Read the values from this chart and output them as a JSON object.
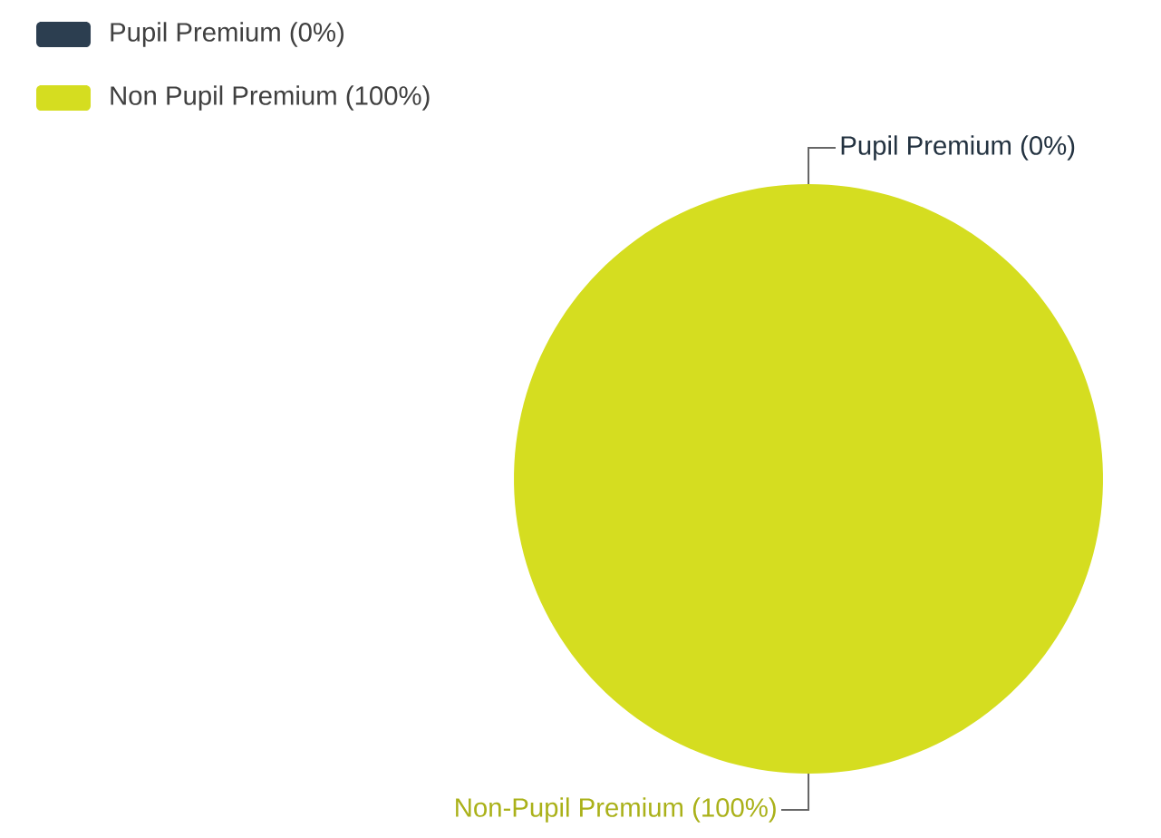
{
  "chart_data": {
    "type": "pie",
    "categories": [
      "Pupil Premium (0%)",
      "Non Pupil Premium (100%)"
    ],
    "values": [
      0,
      100
    ],
    "colors": [
      "#2c3e50",
      "#d5dd20"
    ],
    "legend": "top left",
    "annotations": [
      "Pupil Premium (0%)",
      "Non-Pupil Premium (100%)"
    ]
  }
}
